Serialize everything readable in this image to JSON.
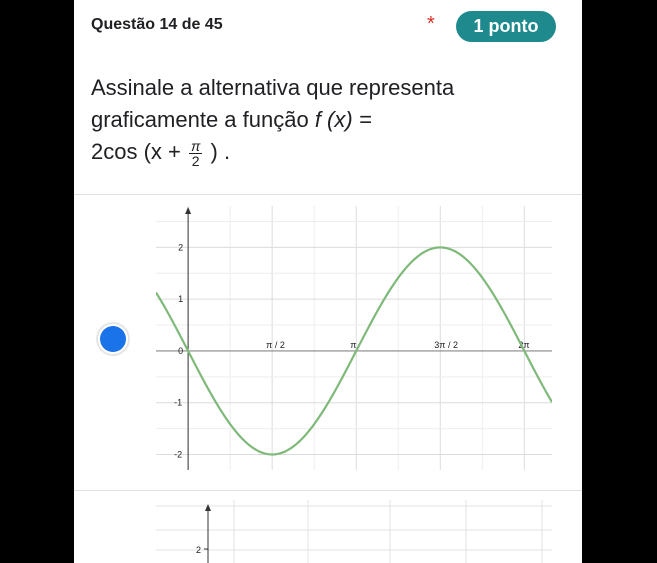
{
  "header": {
    "question_number": "Questão 14 de 45",
    "required_marker": "*",
    "points": "1 ponto"
  },
  "question": {
    "text_line1": "Assinale a alternativa que representa",
    "text_line2": "graficamente a função",
    "func": "f (x) =",
    "expr_pre": "2cos (x +",
    "frac_num": "π",
    "frac_den": "2",
    "expr_post": ") ."
  },
  "option_a": {
    "selected": true,
    "chart_data": {
      "type": "line",
      "x_tick_labels": [
        "π / 2",
        "π",
        "3π / 2",
        "2π"
      ],
      "y_tick_labels": [
        "2",
        "1",
        "0",
        "-1",
        "-2"
      ],
      "series": [
        {
          "function": "2cos(x + π/2)",
          "x_range": [
            -0.6,
            6.8
          ],
          "color": "#7fb97a"
        }
      ],
      "xlim": [
        -0.6,
        6.8
      ],
      "ylim": [
        -2.3,
        2.8
      ],
      "grid": true
    }
  },
  "option_b": {
    "y_tick_label_visible": "2"
  }
}
